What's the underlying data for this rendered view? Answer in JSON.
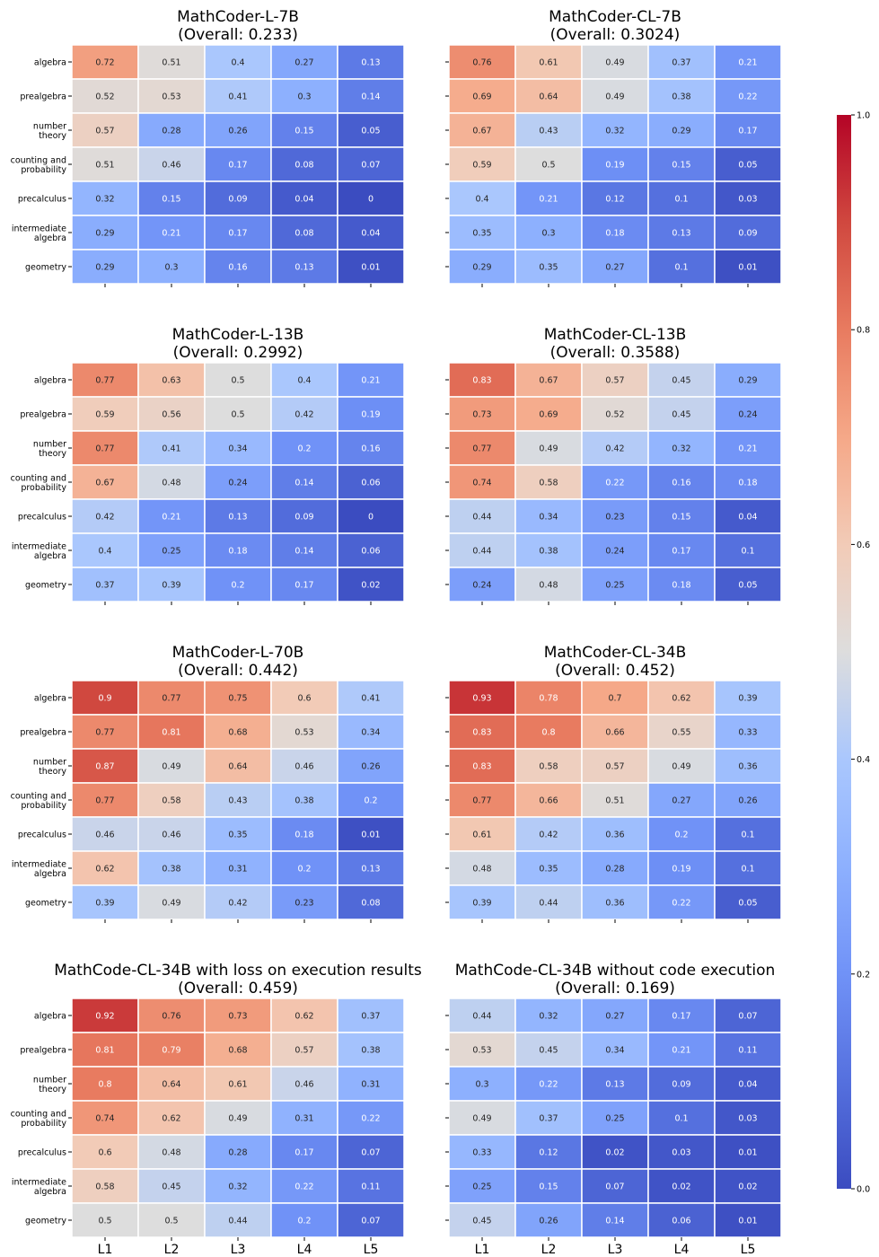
{
  "rows": [
    "algebra",
    "prealgebra",
    "number theory",
    "counting and probability",
    "precalculus",
    "intermediate algebra",
    "geometry"
  ],
  "row_label_lines": [
    [
      "algebra"
    ],
    [
      "prealgebra"
    ],
    [
      "number",
      "theory"
    ],
    [
      "counting and",
      "probability"
    ],
    [
      "precalculus"
    ],
    [
      "intermediate",
      "algebra"
    ],
    [
      "geometry"
    ]
  ],
  "cols": [
    "L1",
    "L2",
    "L3",
    "L4",
    "L5"
  ],
  "colorbar": {
    "vmin": 0.0,
    "vmax": 1.0,
    "ticks": [
      "0.0",
      "0.2",
      "0.4",
      "0.6",
      "0.8",
      "1.0"
    ],
    "colormap": "coolwarm"
  },
  "chart_data": [
    {
      "type": "heatmap",
      "title": "MathCoder-L-7B",
      "subtitle": "(Overall: 0.233)",
      "values": [
        [
          0.72,
          0.51,
          0.4,
          0.27,
          0.13
        ],
        [
          0.52,
          0.53,
          0.41,
          0.3,
          0.14
        ],
        [
          0.57,
          0.28,
          0.26,
          0.15,
          0.05
        ],
        [
          0.51,
          0.46,
          0.17,
          0.08,
          0.07
        ],
        [
          0.32,
          0.15,
          0.09,
          0.04,
          0
        ],
        [
          0.29,
          0.21,
          0.17,
          0.08,
          0.04
        ],
        [
          0.29,
          0.3,
          0.16,
          0.13,
          0.01
        ]
      ]
    },
    {
      "type": "heatmap",
      "title": "MathCoder-CL-7B",
      "subtitle": "(Overall: 0.3024)",
      "values": [
        [
          0.76,
          0.61,
          0.49,
          0.37,
          0.21
        ],
        [
          0.69,
          0.64,
          0.49,
          0.38,
          0.22
        ],
        [
          0.67,
          0.43,
          0.32,
          0.29,
          0.17
        ],
        [
          0.59,
          0.5,
          0.19,
          0.15,
          0.05
        ],
        [
          0.4,
          0.21,
          0.12,
          0.1,
          0.03
        ],
        [
          0.35,
          0.3,
          0.18,
          0.13,
          0.09
        ],
        [
          0.29,
          0.35,
          0.27,
          0.1,
          0.01
        ]
      ]
    },
    {
      "type": "heatmap",
      "title": "MathCoder-L-13B",
      "subtitle": "(Overall: 0.2992)",
      "values": [
        [
          0.77,
          0.63,
          0.5,
          0.4,
          0.21
        ],
        [
          0.59,
          0.56,
          0.5,
          0.42,
          0.19
        ],
        [
          0.77,
          0.41,
          0.34,
          0.2,
          0.16
        ],
        [
          0.67,
          0.48,
          0.24,
          0.14,
          0.06
        ],
        [
          0.42,
          0.21,
          0.13,
          0.09,
          0
        ],
        [
          0.4,
          0.25,
          0.18,
          0.14,
          0.06
        ],
        [
          0.37,
          0.39,
          0.2,
          0.17,
          0.02
        ]
      ]
    },
    {
      "type": "heatmap",
      "title": "MathCoder-CL-13B",
      "subtitle": "(Overall: 0.3588)",
      "values": [
        [
          0.83,
          0.67,
          0.57,
          0.45,
          0.29
        ],
        [
          0.73,
          0.69,
          0.52,
          0.45,
          0.24
        ],
        [
          0.77,
          0.49,
          0.42,
          0.32,
          0.21
        ],
        [
          0.74,
          0.58,
          0.22,
          0.16,
          0.18
        ],
        [
          0.44,
          0.34,
          0.23,
          0.15,
          0.04
        ],
        [
          0.44,
          0.38,
          0.24,
          0.17,
          0.1
        ],
        [
          0.24,
          0.48,
          0.25,
          0.18,
          0.05
        ]
      ]
    },
    {
      "type": "heatmap",
      "title": "MathCoder-L-70B",
      "subtitle": "(Overall: 0.442)",
      "values": [
        [
          0.9,
          0.77,
          0.75,
          0.6,
          0.41
        ],
        [
          0.77,
          0.81,
          0.68,
          0.53,
          0.34
        ],
        [
          0.87,
          0.49,
          0.64,
          0.46,
          0.26
        ],
        [
          0.77,
          0.58,
          0.43,
          0.38,
          0.2
        ],
        [
          0.46,
          0.46,
          0.35,
          0.18,
          0.01
        ],
        [
          0.62,
          0.38,
          0.31,
          0.2,
          0.13
        ],
        [
          0.39,
          0.49,
          0.42,
          0.23,
          0.08
        ]
      ]
    },
    {
      "type": "heatmap",
      "title": "MathCoder-CL-34B",
      "subtitle": "(Overall: 0.452)",
      "values": [
        [
          0.93,
          0.78,
          0.7,
          0.62,
          0.39
        ],
        [
          0.83,
          0.8,
          0.66,
          0.55,
          0.33
        ],
        [
          0.83,
          0.58,
          0.57,
          0.49,
          0.36
        ],
        [
          0.77,
          0.66,
          0.51,
          0.27,
          0.26
        ],
        [
          0.61,
          0.42,
          0.36,
          0.2,
          0.1
        ],
        [
          0.48,
          0.35,
          0.28,
          0.19,
          0.1
        ],
        [
          0.39,
          0.44,
          0.36,
          0.22,
          0.05
        ]
      ]
    },
    {
      "type": "heatmap",
      "title": "MathCode-CL-34B with loss on execution results",
      "subtitle": "(Overall: 0.459)",
      "values": [
        [
          0.92,
          0.76,
          0.73,
          0.62,
          0.37
        ],
        [
          0.81,
          0.79,
          0.68,
          0.57,
          0.38
        ],
        [
          0.8,
          0.64,
          0.61,
          0.46,
          0.31
        ],
        [
          0.74,
          0.62,
          0.49,
          0.31,
          0.22
        ],
        [
          0.6,
          0.48,
          0.28,
          0.17,
          0.07
        ],
        [
          0.58,
          0.45,
          0.32,
          0.22,
          0.11
        ],
        [
          0.5,
          0.5,
          0.44,
          0.2,
          0.07
        ]
      ]
    },
    {
      "type": "heatmap",
      "title": "MathCode-CL-34B without code execution",
      "subtitle": "(Overall: 0.169)",
      "values": [
        [
          0.44,
          0.32,
          0.27,
          0.17,
          0.07
        ],
        [
          0.53,
          0.45,
          0.34,
          0.21,
          0.11
        ],
        [
          0.3,
          0.22,
          0.13,
          0.09,
          0.04
        ],
        [
          0.49,
          0.37,
          0.25,
          0.1,
          0.03
        ],
        [
          0.33,
          0.12,
          0.02,
          0.03,
          0.01
        ],
        [
          0.25,
          0.15,
          0.07,
          0.02,
          0.02
        ],
        [
          0.45,
          0.26,
          0.14,
          0.06,
          0.01
        ]
      ]
    }
  ]
}
